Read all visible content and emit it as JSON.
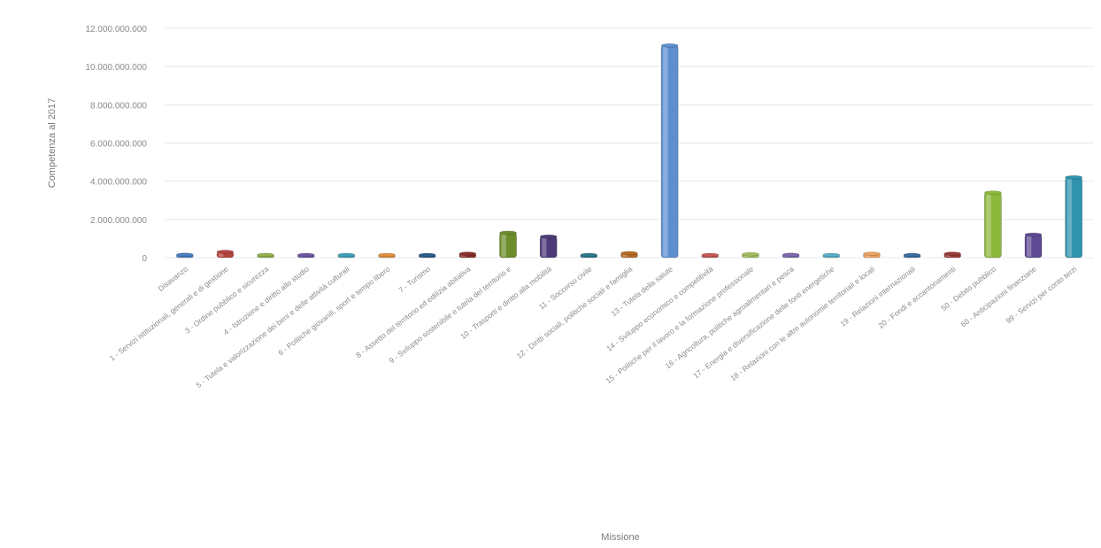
{
  "chart_data": {
    "type": "bar",
    "title": "",
    "xlabel": "Missione",
    "ylabel": "Competenza al 2017",
    "ylim": [
      0,
      12000000000
    ],
    "yticks": [
      0,
      2000000000,
      4000000000,
      6000000000,
      8000000000,
      10000000000,
      12000000000
    ],
    "ytick_labels": [
      "0",
      "2.000.000.000",
      "4.000.000.000",
      "6.000.000.000",
      "8.000.000.000",
      "10.000.000.000",
      "12.000.000.000"
    ],
    "grid": true,
    "legend": "none",
    "categories": [
      "Disavanzo",
      "1 - Servizi istituzionali, generali e di gestione",
      "3 - Ordine pubblico e sicurezza",
      "4 - Istruzione e diritto allo studio",
      "5 - Tutela e valorizzazione dei beni e delle attività culturali",
      "6 - Politiche giovanili, sport e tempo libero",
      "7 - Turismo",
      "8 - Assetto del territorio ed edilizia abitativa",
      "9 - Sviluppo sostenibile e tutela del territorio e",
      "10 - Trasporti e diritto alla mobilità",
      "11 - Soccorso civile",
      "12 - Diritti sociali, politiche sociali e famiglia",
      "13 - Tutela della salute",
      "14 - Sviluppo economico e competitività",
      "15 - Politiche per il lavoro e la formazione professionale",
      "16 - Agricoltura, politiche agroalimentari e pesca",
      "17 - Energia e diversificazione delle fonti energetiche",
      "18 - Relazioni con le altre autonomie territoriali e locali",
      "19 - Relazioni internazionali",
      "20 - Fondi e accantonamenti",
      "50 - Debito pubblico",
      "60 - Anticipazioni finanziarie",
      "99 - Servizi per conto terzi"
    ],
    "values": [
      150000000,
      300000000,
      60000000,
      100000000,
      120000000,
      90000000,
      80000000,
      200000000,
      1300000000,
      1100000000,
      130000000,
      230000000,
      11100000000,
      80000000,
      180000000,
      150000000,
      70000000,
      200000000,
      100000000,
      200000000,
      3400000000,
      1200000000,
      4200000000
    ],
    "colors": [
      "#4a7fc0",
      "#b5443f",
      "#93b04a",
      "#6e58a0",
      "#3fa1ba",
      "#e48f3f",
      "#2f5d8a",
      "#8a2f2a",
      "#6d8c2c",
      "#4c3b78",
      "#2c7a8c",
      "#b86c24",
      "#5d8fd0",
      "#c45a55",
      "#a2bf5e",
      "#7d69ae",
      "#56b0c6",
      "#eea160",
      "#3b6ea0",
      "#9a3a34",
      "#8cb83a",
      "#5e4a92",
      "#2f93ae"
    ]
  }
}
